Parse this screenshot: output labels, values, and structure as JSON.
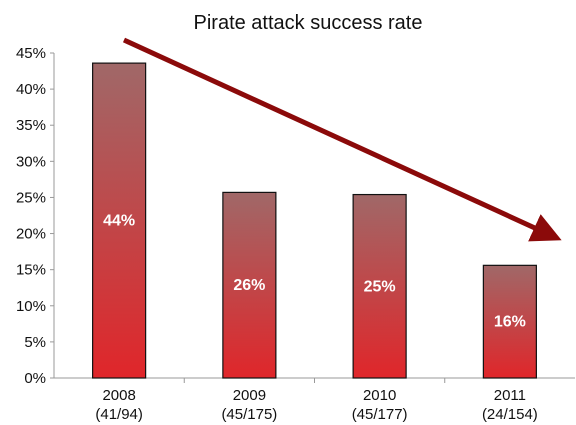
{
  "chart_data": {
    "type": "bar",
    "title": "Pirate attack success rate",
    "categories": [
      "2008",
      "2009",
      "2010",
      "2011"
    ],
    "category_sublabels": [
      "(41/94)",
      "(45/175)",
      "(45/177)",
      "(24/154)"
    ],
    "values": [
      43.6,
      25.7,
      25.4,
      15.6
    ],
    "bar_labels": [
      "44%",
      "26%",
      "25%",
      "16%"
    ],
    "ylim": [
      0,
      45
    ],
    "yticks": [
      0,
      5,
      10,
      15,
      20,
      25,
      30,
      35,
      40,
      45
    ],
    "ytick_labels": [
      "0%",
      "5%",
      "10%",
      "15%",
      "20%",
      "25%",
      "30%",
      "35%",
      "40%",
      "45%"
    ],
    "grid": false,
    "legend": "none",
    "annotation": "downward trend arrow",
    "colors": {
      "bar_top": "#a06868",
      "bar_bottom": "#e0262a",
      "arrow": "#8b0a0a",
      "axis": "#999999"
    }
  }
}
